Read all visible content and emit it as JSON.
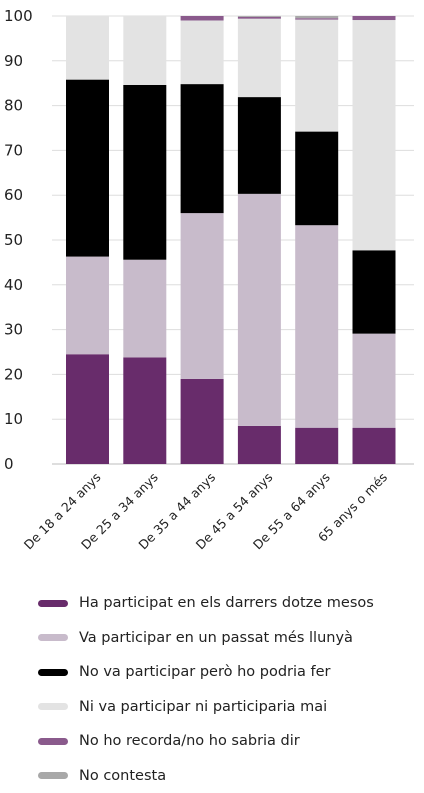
{
  "chart_data": {
    "type": "bar",
    "stacked": true,
    "categories": [
      "De 18 a 24 anys",
      "De 25 a 34 anys",
      "De 35 a 44 anys",
      "De 45 a 54 anys",
      "De 55 a 64 anys",
      "65 anys o més"
    ],
    "series": [
      {
        "name": "Ha participat en els darrers dotze mesos",
        "color": "#682c6b",
        "values": [
          24.5,
          23.8,
          19.0,
          8.5,
          8.1,
          8.1
        ]
      },
      {
        "name": "Va participar en un passat més llunyà",
        "color": "#c8bbcb",
        "values": [
          21.8,
          21.8,
          37.0,
          51.8,
          45.2,
          21.0
        ]
      },
      {
        "name": "No va participar però ho podria fer",
        "color": "#000000",
        "values": [
          39.5,
          39.0,
          28.8,
          21.6,
          20.9,
          18.6
        ]
      },
      {
        "name": "Ni va participar ni participaria mai",
        "color": "#e3e3e3",
        "values": [
          14.2,
          15.4,
          14.2,
          17.5,
          25.0,
          51.4
        ]
      },
      {
        "name": "No ho recorda/no ho sabria dir",
        "color": "#8a5a8c",
        "values": [
          0,
          0,
          1.0,
          0.4,
          0.3,
          0.9
        ]
      },
      {
        "name": "No contesta",
        "color": "#a8a8a8",
        "values": [
          0,
          0,
          0,
          0.2,
          0.5,
          0
        ]
      }
    ],
    "ylim": [
      0,
      100
    ],
    "yticks": [
      "0",
      "10",
      "20",
      "30",
      "40",
      "50",
      "60",
      "70",
      "80",
      "90",
      "100"
    ],
    "grid": true,
    "legend_position": "bottom"
  }
}
